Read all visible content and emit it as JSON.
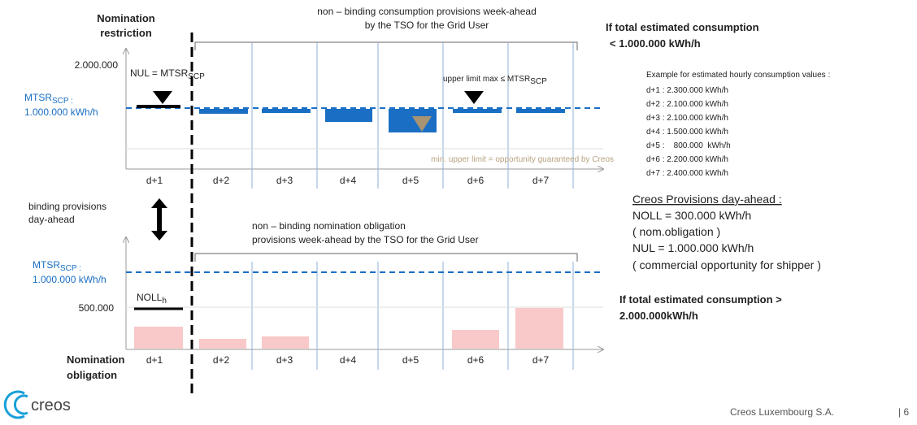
{
  "top_chart": {
    "title": [
      "Nomination",
      "restriction"
    ],
    "bracket_label": [
      "non – binding consumption provisions week-ahead",
      "by the TSO for the Grid User"
    ],
    "y_tick": "2.000.000",
    "mtsr_label": {
      "name": "MTSR",
      "sub": "SCP :",
      "value": "1.000.000  kWh/h"
    },
    "nul_label": {
      "name": "NUL = MTSR",
      "sub": "SCP"
    },
    "upper_label": {
      "name": "upper limit max ≤ MTSR",
      "sub": "SCP"
    },
    "min_label": "min. upper limit = opportunity guaranteed by Creos",
    "days": [
      "d+1",
      "d+2",
      "d+3",
      "d+4",
      "d+5",
      "d+6",
      "d+7"
    ]
  },
  "middle_label": [
    "binding provisions",
    "day-ahead"
  ],
  "bottom_chart": {
    "bracket_label": [
      "non – binding nomination obligation",
      "provisions week-ahead by the TSO for the Grid User"
    ],
    "mtsr_label": {
      "name": "MTSR",
      "sub": "SCP :",
      "value": "1.000.000  kWh/h"
    },
    "y_tick": "500.000",
    "noll_label": {
      "name": "NOLL",
      "sub": "h"
    },
    "title": [
      "Nomination",
      "obligation"
    ],
    "days": [
      "d+1",
      "d+2",
      "d+3",
      "d+4",
      "d+5",
      "d+6",
      "d+7"
    ]
  },
  "right_panel": {
    "heading1": [
      "If total estimated consumption",
      "< 1.000.000 kWh/h"
    ],
    "example_title": "Example for estimated hourly consumption values :",
    "examples": [
      "d+1 : 2.300.000  kWh/h",
      "d+2 : 2.100.000  kWh/h",
      "d+3 : 2.100.000  kWh/h",
      "d+4 : 1.500.000  kWh/h",
      "d+5 :    800.000  kWh/h",
      "d+6 : 2.200.000  kWh/h",
      "d+7 : 2.400.000  kWh/h"
    ],
    "provisions_title": "Creos Provisions day-ahead :",
    "provisions": [
      "NOLL = 300.000 kWh/h",
      "( nom.obligation )",
      "NUL = 1.000.000 kWh/h",
      "( commercial opportunity for shipper )"
    ],
    "heading2": [
      "If total estimated consumption >",
      "2.000.000kWh/h"
    ]
  },
  "footer": {
    "logo": "creos",
    "company": "Creos Luxembourg  S.A.",
    "page": "| 6"
  }
}
